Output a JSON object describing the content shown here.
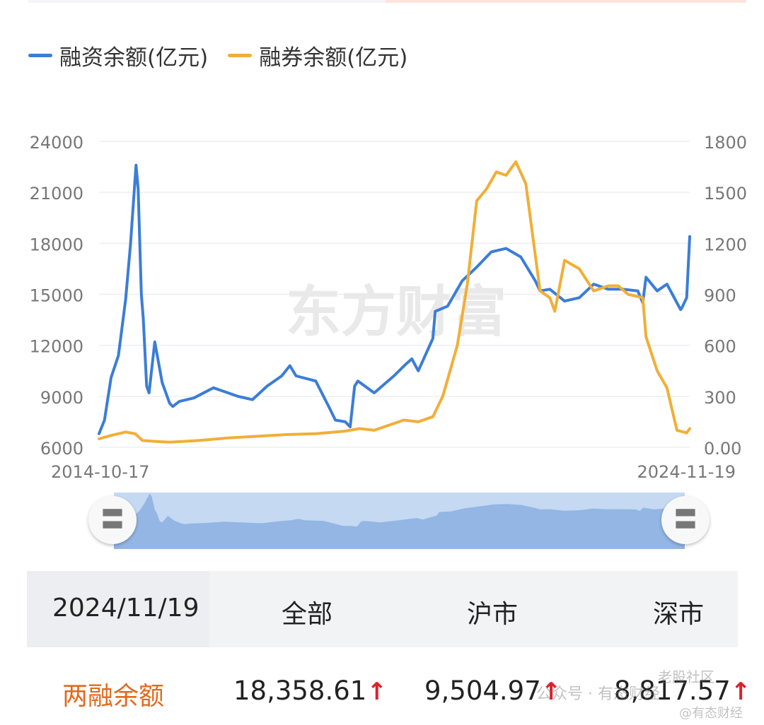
{
  "legend": [
    {
      "label": "融资余额(亿元)",
      "color": "#3b7dd8"
    },
    {
      "label": "融券余额(亿元)",
      "color": "#f2ae36"
    }
  ],
  "watermark": "东方财富",
  "chart_data": {
    "type": "line",
    "x_start": "2014-10-17",
    "x_end": "2024-11-19",
    "left_axis": {
      "ticks": [
        "24000",
        "21000",
        "18000",
        "15000",
        "12000",
        "9000",
        "6000"
      ],
      "min": 6000,
      "max": 24000
    },
    "right_axis": {
      "ticks": [
        "1800",
        "1500",
        "1200",
        "900",
        "600",
        "300",
        "0.00"
      ],
      "min": 0,
      "max": 1800
    },
    "grid": true,
    "legend_position": "top-left",
    "series": [
      {
        "name": "融资余额(亿元)",
        "axis": "left",
        "color": "#3b7dd8",
        "x": [
          "2014-10-17",
          "2014-11-20",
          "2014-12-31",
          "2015-02-15",
          "2015-04-01",
          "2015-05-01",
          "2015-06-05",
          "2015-06-18",
          "2015-07-08",
          "2015-07-20",
          "2015-08-10",
          "2015-08-25",
          "2015-09-30",
          "2015-11-15",
          "2015-12-31",
          "2016-01-20",
          "2016-03-01",
          "2016-05-31",
          "2016-09-30",
          "2016-11-30",
          "2017-02-28",
          "2017-05-31",
          "2017-08-31",
          "2017-11-30",
          "2018-01-20",
          "2018-02-28",
          "2018-06-30",
          "2018-09-30",
          "2018-10-31",
          "2018-12-31",
          "2019-01-31",
          "2019-02-28",
          "2019-03-20",
          "2019-06-30",
          "2019-10-31",
          "2020-01-15",
          "2020-02-20",
          "2020-03-31",
          "2020-06-30",
          "2020-07-15",
          "2020-09-30",
          "2020-12-31",
          "2021-03-31",
          "2021-06-30",
          "2021-09-30",
          "2021-12-31",
          "2022-03-31",
          "2022-04-30",
          "2022-06-30",
          "2022-09-30",
          "2022-12-31",
          "2023-03-31",
          "2023-06-30",
          "2023-09-30",
          "2023-12-31",
          "2024-01-31",
          "2024-02-20",
          "2024-04-30",
          "2024-06-30",
          "2024-08-31",
          "2024-09-23",
          "2024-10-01",
          "2024-10-31",
          "2024-11-19"
        ],
        "values": [
          6800,
          7600,
          10100,
          11400,
          14700,
          17900,
          22600,
          21200,
          15000,
          13600,
          9600,
          9200,
          12200,
          9800,
          8600,
          8400,
          8700,
          8900,
          9500,
          9300,
          9000,
          8800,
          9600,
          10200,
          10800,
          10200,
          9900,
          8200,
          7600,
          7500,
          7200,
          9600,
          9900,
          9200,
          10200,
          10900,
          11200,
          10500,
          12400,
          14000,
          14300,
          15800,
          16600,
          17500,
          17700,
          17200,
          15800,
          15200,
          15300,
          14600,
          14800,
          15600,
          15300,
          15300,
          15200,
          14500,
          16000,
          15200,
          15600,
          14500,
          14100,
          14200,
          14800,
          18400
        ]
      },
      {
        "name": "融券余额(亿元)",
        "axis": "right",
        "color": "#f2ae36",
        "x": [
          "2014-10-17",
          "2014-12-31",
          "2015-03-31",
          "2015-05-31",
          "2015-07-15",
          "2015-09-30",
          "2015-12-31",
          "2016-06-30",
          "2016-12-31",
          "2017-06-30",
          "2017-12-31",
          "2018-06-30",
          "2018-12-31",
          "2019-03-31",
          "2019-06-30",
          "2019-12-31",
          "2020-03-31",
          "2020-06-30",
          "2020-08-31",
          "2020-11-30",
          "2021-01-31",
          "2021-03-31",
          "2021-05-31",
          "2021-07-31",
          "2021-09-30",
          "2021-11-30",
          "2022-01-31",
          "2022-04-30",
          "2022-06-30",
          "2022-07-31",
          "2022-09-30",
          "2022-12-31",
          "2023-03-31",
          "2023-06-30",
          "2023-08-31",
          "2023-10-31",
          "2024-01-31",
          "2024-02-20",
          "2024-04-30",
          "2024-06-30",
          "2024-08-31",
          "2024-10-31",
          "2024-11-19"
        ],
        "values": [
          50,
          70,
          90,
          80,
          40,
          35,
          30,
          40,
          55,
          65,
          75,
          80,
          95,
          110,
          100,
          160,
          150,
          180,
          300,
          600,
          960,
          1450,
          1520,
          1620,
          1600,
          1680,
          1550,
          920,
          880,
          800,
          1100,
          1050,
          920,
          950,
          950,
          900,
          880,
          650,
          450,
          350,
          100,
          85,
          110
        ]
      }
    ]
  },
  "slider": {
    "left_icon": "grip-lines-icon",
    "right_icon": "grip-lines-icon"
  },
  "table": {
    "date": "2024/11/19",
    "headers": [
      "全部",
      "沪市",
      "深市"
    ],
    "row_label": "两融余额",
    "values": [
      "18,358.61",
      "9,504.97",
      "8,817.57"
    ],
    "arrow": "↑",
    "colors": {
      "row_label": "#e06a1f",
      "arrow": "#e0202c"
    }
  },
  "overlay_watermarks": [
    "公众号 · 有态财经",
    "@有态财经",
    "老股社区"
  ]
}
